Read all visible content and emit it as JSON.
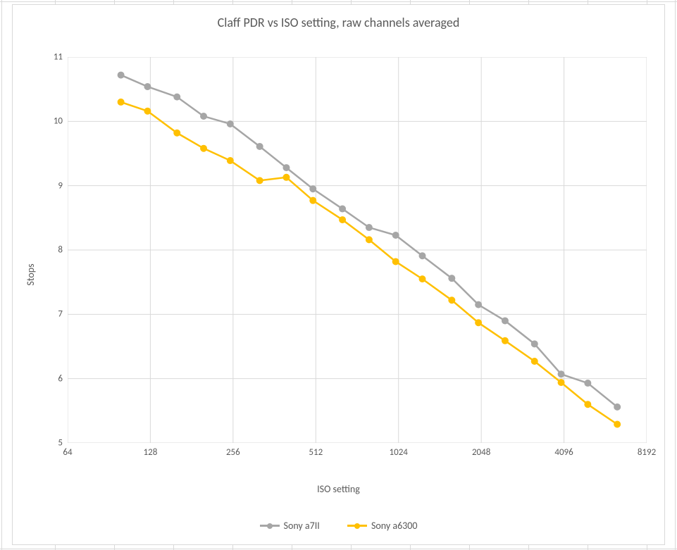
{
  "title": "Claff PDR vs ISO setting, raw channels averaged",
  "xlabel": "ISO setting",
  "ylabel": "Stops",
  "type": "line",
  "background_color": "#ffffff",
  "chart_border_color": "#d9d9d9",
  "grid_color": "#d9d9d9",
  "axis_text_color": "#595959",
  "title_fontsize": 18,
  "label_fontsize": 14,
  "tick_fontsize": 13,
  "x_scale": "log2",
  "xlim": [
    64,
    8192
  ],
  "x_ticks": [
    64,
    128,
    256,
    512,
    1024,
    2048,
    4096,
    8192
  ],
  "y_scale": "linear",
  "ylim": [
    5,
    11
  ],
  "y_ticks": [
    5,
    6,
    7,
    8,
    9,
    10,
    11
  ],
  "line_width": 2.5,
  "marker_style": "circle",
  "marker_radius": 4.5,
  "legend_position": "bottom-center",
  "series": [
    {
      "name": "Sony a7II",
      "color": "#a6a6a6",
      "marker_fill": "#a6a6a6",
      "x": [
        100,
        125,
        160,
        200,
        250,
        320,
        400,
        500,
        640,
        800,
        1000,
        1250,
        1600,
        2000,
        2500,
        3200,
        4000,
        5000,
        6400
      ],
      "y": [
        10.72,
        10.54,
        10.38,
        10.08,
        9.96,
        9.61,
        9.28,
        8.95,
        8.64,
        8.35,
        8.23,
        7.91,
        7.56,
        7.15,
        6.9,
        6.54,
        6.07,
        5.93,
        5.56
      ]
    },
    {
      "name": "Sony a6300",
      "color": "#ffc000",
      "marker_fill": "#ffc000",
      "x": [
        100,
        125,
        160,
        200,
        250,
        320,
        400,
        500,
        640,
        800,
        1000,
        1250,
        1600,
        2000,
        2500,
        3200,
        4000,
        5000,
        6400
      ],
      "y": [
        10.3,
        10.16,
        9.82,
        9.58,
        9.39,
        9.08,
        9.13,
        8.77,
        8.47,
        8.16,
        7.82,
        7.55,
        7.22,
        6.87,
        6.59,
        6.27,
        5.94,
        5.6,
        5.29
      ]
    }
  ],
  "legend_labels": [
    "Sony a7II",
    "Sony a6300"
  ]
}
